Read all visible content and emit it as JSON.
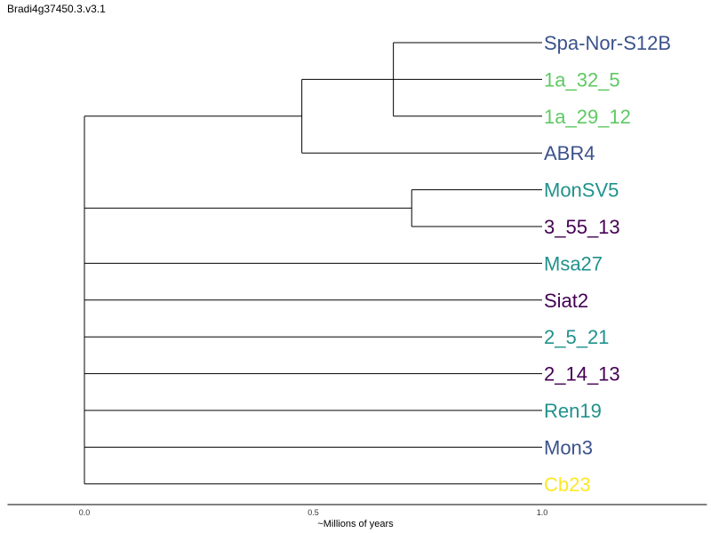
{
  "title": "Bradi4g37450.3.v3.1",
  "axis": {
    "label": "~Millions of years",
    "ticks": [
      {
        "value": 0.0,
        "label": "0.0"
      },
      {
        "value": 0.5,
        "label": "0.5"
      },
      {
        "value": 1.0,
        "label": "1.0"
      }
    ],
    "range": [
      -0.168,
      1.36
    ]
  },
  "colors": {
    "navy": "#3b528b",
    "green": "#5ec962",
    "teal": "#21918c",
    "purple": "#440154",
    "yellow": "#fde725",
    "branch": "#000000"
  },
  "tree": {
    "children": [
      {
        "height": 0.475,
        "children": [
          {
            "height": 0.675,
            "children": [
              {
                "leaf": "Spa-Nor-S12B",
                "color": "#3b528b"
              },
              {
                "leaf": "1a_32_5",
                "color": "#5ec962"
              },
              {
                "leaf": "1a_29_12",
                "color": "#5ec962"
              }
            ]
          },
          {
            "leaf": "ABR4",
            "color": "#3b528b"
          }
        ]
      },
      {
        "height": 0.715,
        "children": [
          {
            "leaf": "MonSV5",
            "color": "#21918c"
          },
          {
            "leaf": "3_55_13",
            "color": "#440154"
          }
        ]
      },
      {
        "leaf": "Msa27",
        "color": "#21918c"
      },
      {
        "leaf": "Siat2",
        "color": "#440154"
      },
      {
        "leaf": "2_5_21",
        "color": "#21918c"
      },
      {
        "leaf": "2_14_13",
        "color": "#440154"
      },
      {
        "leaf": "Ren19",
        "color": "#21918c"
      },
      {
        "leaf": "Mon3",
        "color": "#3b528b"
      },
      {
        "leaf": "Cb23",
        "color": "#fde725"
      }
    ]
  }
}
